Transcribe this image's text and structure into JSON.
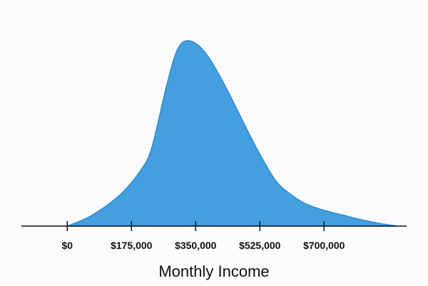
{
  "chart_data": {
    "type": "area",
    "title": "",
    "xlabel": "Monthly Income",
    "ylabel": "",
    "x_tick_values": [
      0,
      175000,
      350000,
      525000,
      700000
    ],
    "x_tick_labels": [
      "$0",
      "$175,000",
      "$350,000",
      "$525,000",
      "$700,000"
    ],
    "xlim": [
      -125000,
      925000
    ],
    "ylim": [
      0,
      1
    ],
    "grid": false,
    "series": [
      {
        "x": [
          0,
          50000,
          100000,
          150000,
          200000,
          230000,
          270000,
          300000,
          330000,
          370000,
          410000,
          450000,
          490000,
          530000,
          570000,
          610000,
          650000,
          700000,
          750000,
          800000,
          850000,
          900000
        ],
        "values": [
          0.0,
          0.04,
          0.1,
          0.18,
          0.3,
          0.42,
          0.75,
          0.95,
          1.0,
          0.95,
          0.83,
          0.68,
          0.52,
          0.37,
          0.24,
          0.17,
          0.12,
          0.085,
          0.06,
          0.035,
          0.015,
          0.0
        ]
      }
    ],
    "colors": {
      "fill": "#449fde",
      "stroke": "#2f8ad0",
      "axis": "#111111"
    }
  }
}
